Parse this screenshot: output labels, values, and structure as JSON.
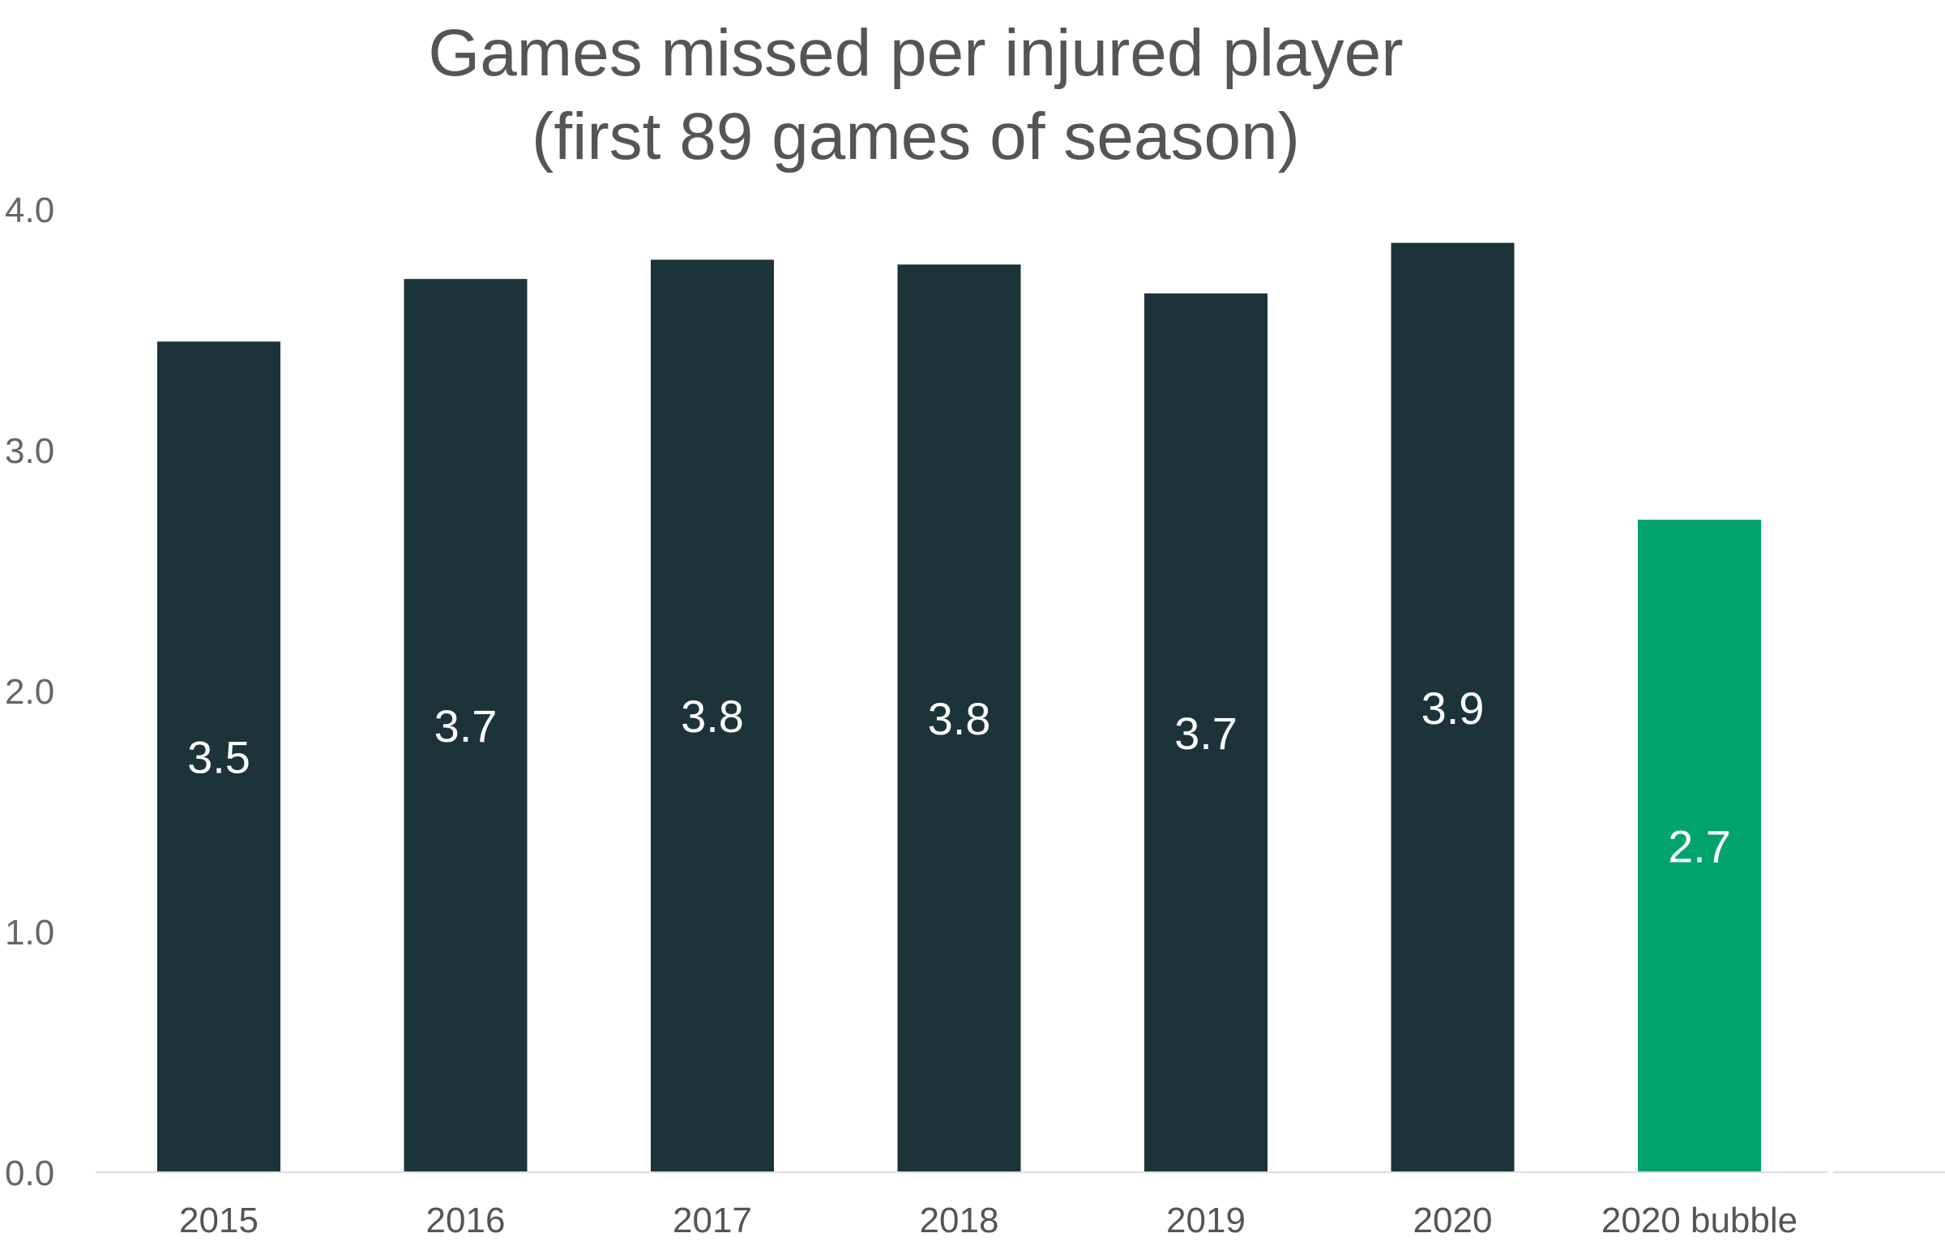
{
  "chart_data": {
    "type": "bar",
    "title_lines": [
      "Games missed per injured player",
      "(first 89 games of season)"
    ],
    "xlabel": "",
    "ylabel": "",
    "categories": [
      "2015",
      "2016",
      "2017",
      "2018",
      "2019",
      "2020",
      "2020 bubble"
    ],
    "values": [
      3.45,
      3.71,
      3.79,
      3.77,
      3.65,
      3.86,
      2.71
    ],
    "data_labels": [
      "3.5",
      "3.7",
      "3.8",
      "3.8",
      "3.7",
      "3.9",
      "2.7"
    ],
    "y_ticks": [
      "0.0",
      "1.0",
      "2.0",
      "3.0",
      "4.0"
    ],
    "ylim": [
      0,
      4
    ],
    "grid": false,
    "legend": "none",
    "colors": {
      "default_bar": "#1c333a",
      "highlight_bar": "#00a36a",
      "highlight_category": "2020 bubble",
      "title": "#555555",
      "axis_line": "#dddddd"
    }
  }
}
